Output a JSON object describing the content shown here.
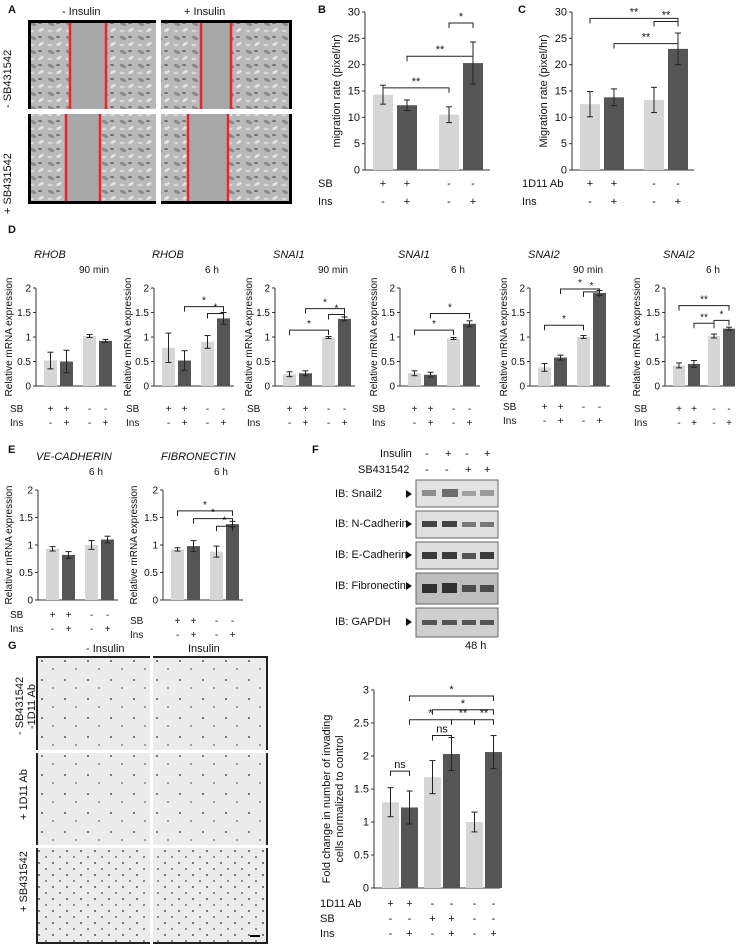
{
  "panel_labels": {
    "A": "A",
    "B": "B",
    "C": "C",
    "D": "D",
    "E": "E",
    "F": "F",
    "G": "G"
  },
  "panel_a": {
    "col_minus": "- Insulin",
    "col_plus": "+ Insulin",
    "row_minus": "- SB431542",
    "row_plus": "+ SB431542"
  },
  "panel_f": {
    "insulin_label": "Insulin",
    "sb_label": "SB431542",
    "insulin_signs": [
      "-",
      "+",
      "-",
      "+"
    ],
    "sb_signs": [
      "-",
      "-",
      "+",
      "+"
    ],
    "blots": [
      "IB: Snail2",
      "IB: N-Cadherin",
      "IB: E-Cadherin",
      "IB: Fibronectin",
      "IB: GAPDH"
    ],
    "time": "48 h"
  },
  "panel_g_image": {
    "col_minus": "- Insulin",
    "col_plus": "Insulin",
    "row1": "- SB431542",
    "row1b": "-1D11 Ab",
    "row2": "+ 1D11 Ab",
    "row3": "+ SB431542"
  },
  "colors": {
    "light_bar": "#d6d6d6",
    "dark_bar": "#555555",
    "red_line": "#e8262b"
  },
  "chart_data": [
    {
      "id": "B",
      "type": "bar",
      "ylabel": "migration rate (pixel/hr)",
      "ylim": [
        0,
        30
      ],
      "yticks": [
        0,
        5,
        10,
        15,
        20,
        25,
        30
      ],
      "values": [
        14.3,
        12.3,
        10.5,
        20.3
      ],
      "errors": [
        1.8,
        1.0,
        1.5,
        4.0
      ],
      "row_labels": [
        "SB",
        "Ins"
      ],
      "row_signs": [
        [
          "+",
          "+",
          "-",
          "-"
        ],
        [
          "-",
          "+",
          "-",
          "+"
        ]
      ],
      "sig": [
        "**",
        "**",
        "*"
      ]
    },
    {
      "id": "C",
      "type": "bar",
      "ylabel": "Migration rate (pixel/hr)",
      "ylim": [
        0,
        30
      ],
      "yticks": [
        0,
        5,
        10,
        15,
        20,
        25,
        30
      ],
      "values": [
        12.5,
        13.8,
        13.3,
        23.0
      ],
      "errors": [
        2.4,
        1.6,
        2.4,
        3.0
      ],
      "row_labels": [
        "1D11 Ab",
        "Ins"
      ],
      "row_signs": [
        [
          "+",
          "+",
          "-",
          "-"
        ],
        [
          "-",
          "+",
          "-",
          "+"
        ]
      ],
      "sig": [
        "**",
        "**",
        "**"
      ]
    },
    {
      "id": "D1",
      "type": "bar",
      "gene": "RHOB",
      "time": "90 min",
      "ylabel": "Relative mRNA expression",
      "ylim": [
        0,
        2
      ],
      "yticks": [
        0,
        0.5,
        1,
        1.5,
        2
      ],
      "values": [
        0.52,
        0.5,
        1.02,
        0.92
      ],
      "errors": [
        0.17,
        0.23,
        0.03,
        0.03
      ],
      "row_labels": [
        "SB",
        "Ins"
      ],
      "row_signs": [
        [
          "+",
          "+",
          "-",
          "-"
        ],
        [
          "-",
          "+",
          "-",
          "+"
        ]
      ],
      "sig": []
    },
    {
      "id": "D2",
      "type": "bar",
      "gene": "RHOB",
      "time": "6 h",
      "ylabel": "Relative mRNA expression",
      "ylim": [
        0,
        2
      ],
      "yticks": [
        0,
        0.5,
        1,
        1.5,
        2
      ],
      "values": [
        0.78,
        0.52,
        0.9,
        1.38
      ],
      "errors": [
        0.3,
        0.2,
        0.13,
        0.12
      ],
      "row_labels": [
        "SB",
        "Ins"
      ],
      "row_signs": [
        [
          "+",
          "+",
          "-",
          "-"
        ],
        [
          "-",
          "+",
          "-",
          "+"
        ]
      ],
      "sig": [
        "*",
        "*"
      ]
    },
    {
      "id": "D3",
      "type": "bar",
      "gene": "SNAI1",
      "time": "90 min",
      "ylabel": "Relative mRNA expression",
      "ylim": [
        0,
        2
      ],
      "yticks": [
        0,
        0.5,
        1,
        1.5,
        2
      ],
      "values": [
        0.24,
        0.26,
        0.99,
        1.37
      ],
      "errors": [
        0.05,
        0.05,
        0.02,
        0.04
      ],
      "row_labels": [
        "SB",
        "Ins"
      ],
      "row_signs": [
        [
          "+",
          "+",
          "-",
          "-"
        ],
        [
          "-",
          "+",
          "-",
          "+"
        ]
      ],
      "sig": [
        "*",
        "*",
        "*"
      ]
    },
    {
      "id": "D4",
      "type": "bar",
      "gene": "SNAI1",
      "time": "6 h",
      "ylabel": "Relative mRNA expression",
      "ylim": [
        0,
        2
      ],
      "yticks": [
        0,
        0.5,
        1,
        1.5,
        2
      ],
      "values": [
        0.26,
        0.23,
        0.97,
        1.27
      ],
      "errors": [
        0.05,
        0.05,
        0.02,
        0.06
      ],
      "row_labels": [
        "SB",
        "Ins"
      ],
      "row_signs": [
        [
          "+",
          "+",
          "-",
          "-"
        ],
        [
          "-",
          "+",
          "-",
          "+"
        ]
      ],
      "sig": [
        "*",
        "*"
      ]
    },
    {
      "id": "D5",
      "type": "bar",
      "gene": "SNAI2",
      "time": "90 min",
      "ylabel": "Relative mRNA expression",
      "ylim": [
        0,
        2
      ],
      "yticks": [
        0,
        0.5,
        1,
        1.5,
        2
      ],
      "values": [
        0.38,
        0.58,
        1.0,
        1.9
      ],
      "errors": [
        0.08,
        0.05,
        0.03,
        0.05
      ],
      "row_labels": [
        "SB",
        "Ins"
      ],
      "row_signs": [
        [
          "+",
          "+",
          "-",
          "-"
        ],
        [
          "-",
          "+",
          "-",
          "+"
        ]
      ],
      "sig": [
        "*",
        "*",
        "*"
      ]
    },
    {
      "id": "D6",
      "type": "bar",
      "gene": "SNAI2",
      "time": "6 h",
      "ylabel": "Relative mRNA expression",
      "ylim": [
        0,
        2
      ],
      "yticks": [
        0,
        0.5,
        1,
        1.5,
        2
      ],
      "values": [
        0.42,
        0.45,
        1.02,
        1.17
      ],
      "errors": [
        0.05,
        0.07,
        0.04,
        0.03
      ],
      "row_labels": [
        "SB",
        "Ins"
      ],
      "row_signs": [
        [
          "+",
          "+",
          "-",
          "-"
        ],
        [
          "-",
          "+",
          "-",
          "+"
        ]
      ],
      "sig": [
        "**",
        "**",
        "*"
      ]
    },
    {
      "id": "E1",
      "type": "bar",
      "gene": "VE-CADHERIN",
      "time": "6 h",
      "ylabel": "Relative mRNA expression",
      "ylim": [
        0,
        2
      ],
      "yticks": [
        0,
        0.5,
        1,
        1.5,
        2
      ],
      "values": [
        0.93,
        0.82,
        1.0,
        1.1
      ],
      "errors": [
        0.04,
        0.06,
        0.08,
        0.06
      ],
      "row_labels": [
        "SB",
        "Ins"
      ],
      "row_signs": [
        [
          "+",
          "+",
          "-",
          "-"
        ],
        [
          "-",
          "+",
          "-",
          "+"
        ]
      ],
      "sig": []
    },
    {
      "id": "E2",
      "type": "bar",
      "gene": "FIBRONECTIN",
      "time": "6 h",
      "ylabel": "Relative mRNA expression",
      "ylim": [
        0,
        2
      ],
      "yticks": [
        0,
        0.5,
        1,
        1.5,
        2
      ],
      "values": [
        0.92,
        0.98,
        0.88,
        1.38
      ],
      "errors": [
        0.03,
        0.1,
        0.1,
        0.05
      ],
      "row_labels": [
        "SB",
        "Ins"
      ],
      "row_signs": [
        [
          "+",
          "+",
          "-",
          "-"
        ],
        [
          "-",
          "+",
          "-",
          "+"
        ]
      ],
      "sig": [
        "*",
        "*",
        "*"
      ]
    },
    {
      "id": "G",
      "type": "bar",
      "ylabel": "Fold change in number of invading cells normalized to control",
      "ylim": [
        0,
        3
      ],
      "yticks": [
        0,
        0.5,
        1,
        1.5,
        2,
        2.5,
        3
      ],
      "values": [
        1.3,
        1.22,
        1.68,
        2.03,
        1.0,
        2.06
      ],
      "errors": [
        0.22,
        0.25,
        0.25,
        0.25,
        0.15,
        0.25
      ],
      "row_labels": [
        "1D11 Ab",
        "SB",
        "Ins"
      ],
      "row_signs": [
        [
          "+",
          "+",
          "-",
          "-",
          "-",
          "-"
        ],
        [
          "-",
          "-",
          "+",
          "+",
          "-",
          "-"
        ],
        [
          "-",
          "+",
          "-",
          "+",
          "-",
          "+"
        ]
      ],
      "sig": [
        "ns",
        "ns",
        "*",
        "**",
        "**",
        "*",
        "*"
      ]
    }
  ]
}
